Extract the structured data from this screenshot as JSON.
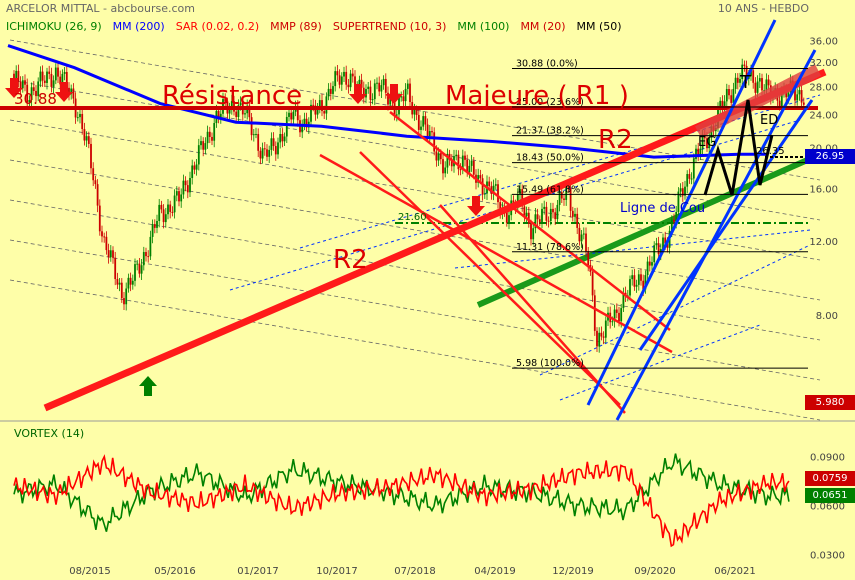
{
  "header": {
    "title": "ARCELOR MITTAL - abcbourse.com",
    "period": "10 ANS - HEBDO",
    "indicators": [
      {
        "label": "ICHIMOKU (26, 9)",
        "color": "#008000"
      },
      {
        "label": "MM (200)",
        "color": "#0000ff"
      },
      {
        "label": "SAR (0.02, 0.2)",
        "color": "#ff0000"
      },
      {
        "label": "MMP (89)",
        "color": "#cc0000"
      },
      {
        "label": "SUPERTREND (10, 3)",
        "color": "#cc0000"
      },
      {
        "label": "MM (100)",
        "color": "#008000"
      },
      {
        "label": "MM (20)",
        "color": "#cc0000"
      },
      {
        "label": "MM (50)",
        "color": "#000000"
      }
    ]
  },
  "annotations": {
    "level_r1": "30.88",
    "resistance": "Résistance",
    "majeure": "Majeure ( R1 )",
    "r2_right": "R2",
    "r2_left": "R2",
    "neckline": "Ligne de Cou",
    "eg": "EG",
    "t": "T",
    "ed": "ED",
    "val_21": "21.60",
    "val_25": "26.35"
  },
  "fibonacci": [
    {
      "label": "30.88  (0.0%)",
      "value": 30.88
    },
    {
      "label": "25.00  (23.6%)",
      "value": 25.0
    },
    {
      "label": "21.37  (38.2%)",
      "value": 21.37
    },
    {
      "label": "18.43  (50.0%)",
      "value": 18.43
    },
    {
      "label": "15.49  (61.8%)",
      "value": 15.49
    },
    {
      "label": "11.31  (78.6%)",
      "value": 11.31
    },
    {
      "label": "5.98  (100.0%)",
      "value": 5.98
    }
  ],
  "price_tags": {
    "last_price": "26.95",
    "low": "5.980"
  },
  "vortex": {
    "title": "VORTEX (14)",
    "tag_red": "0.0759",
    "tag_green": "0.0651"
  },
  "colors": {
    "background": "#fefea8",
    "candle_up": "#008000",
    "candle_down": "#cc0000",
    "ma200": "#0000ff",
    "resistance_line": "#cc0000",
    "trend_red": "#ff1a1a",
    "trend_green": "#1a9a1a",
    "channel_blue": "#0033ff",
    "vortex_plus": "#008000",
    "vortex_minus": "#ff0000"
  },
  "chart_data": [
    {
      "type": "candlestick",
      "title": "ARCELOR MITTAL",
      "x_ticks": [
        "08/2015",
        "05/2016",
        "01/2017",
        "10/2017",
        "07/2018",
        "04/2019",
        "12/2019",
        "09/2020",
        "06/2021"
      ],
      "y_ticks": [
        36,
        32,
        28,
        24,
        20,
        16,
        12,
        8
      ],
      "ylim": [
        4.5,
        37.5
      ],
      "scale": "log",
      "grid": false,
      "series": [
        {
          "name": "Prix",
          "x": [
            "2015-01",
            "2015-03",
            "2015-05",
            "2015-06",
            "2015-08",
            "2015-10",
            "2015-11",
            "2016-01",
            "2016-02",
            "2016-04",
            "2016-05",
            "2016-07",
            "2016-08",
            "2016-10",
            "2016-11",
            "2017-01",
            "2017-02",
            "2017-04",
            "2017-05",
            "2017-07",
            "2017-08",
            "2017-10",
            "2017-11",
            "2018-01",
            "2018-02",
            "2018-04",
            "2018-06",
            "2018-07",
            "2018-08",
            "2018-10",
            "2018-11",
            "2019-01",
            "2019-02",
            "2019-04",
            "2019-05",
            "2019-07",
            "2019-08",
            "2019-10",
            "2019-12",
            "2020-01",
            "2020-02",
            "2020-03",
            "2020-05",
            "2020-06",
            "2020-08",
            "2020-09",
            "2020-11",
            "2020-12",
            "2021-02",
            "2021-03",
            "2021-05",
            "2021-06",
            "2021-08",
            "2021-09"
          ],
          "values": [
            30.0,
            27.0,
            29.0,
            30.5,
            26.0,
            17.0,
            12.0,
            9.0,
            9.5,
            12.0,
            14.0,
            15.0,
            17.0,
            21.0,
            24.0,
            25.5,
            24.0,
            19.0,
            20.0,
            24.0,
            23.0,
            25.0,
            28.0,
            30.0,
            27.0,
            28.0,
            25.0,
            27.0,
            24.0,
            20.0,
            18.0,
            19.0,
            17.0,
            16.0,
            14.0,
            15.0,
            13.0,
            14.0,
            15.5,
            13.0,
            11.0,
            7.0,
            8.0,
            9.0,
            10.0,
            11.0,
            13.0,
            16.0,
            20.0,
            22.0,
            27.0,
            30.0,
            29.0,
            26.95
          ]
        },
        {
          "name": "MM (200)",
          "x": [
            "2015-01",
            "2015-08",
            "2016-05",
            "2017-01",
            "2017-10",
            "2018-07",
            "2019-04",
            "2019-12",
            "2020-09",
            "2021-06",
            "2021-09"
          ],
          "values": [
            35.0,
            31.0,
            25.5,
            23.0,
            22.5,
            21.3,
            20.7,
            20.0,
            19.0,
            19.3,
            19.3
          ]
        }
      ]
    },
    {
      "type": "line",
      "title": "VORTEX (14)",
      "y_ticks": [
        0.09,
        0.075,
        0.06,
        0.03
      ],
      "series": [
        {
          "name": "VI+",
          "x": [
            "2015-01",
            "2015-06",
            "2015-11",
            "2016-04",
            "2016-09",
            "2017-02",
            "2017-07",
            "2017-12",
            "2018-05",
            "2018-10",
            "2019-03",
            "2019-08",
            "2020-01",
            "2020-06",
            "2020-11",
            "2021-04",
            "2021-09"
          ],
          "values": [
            0.066,
            0.073,
            0.048,
            0.069,
            0.08,
            0.065,
            0.082,
            0.074,
            0.068,
            0.06,
            0.072,
            0.068,
            0.06,
            0.057,
            0.087,
            0.073,
            0.066
          ]
        },
        {
          "name": "VI-",
          "x": [
            "2015-01",
            "2015-06",
            "2015-11",
            "2016-04",
            "2016-09",
            "2017-02",
            "2017-07",
            "2017-12",
            "2018-05",
            "2018-10",
            "2019-03",
            "2019-08",
            "2020-01",
            "2020-06",
            "2020-11",
            "2021-04",
            "2021-09"
          ],
          "values": [
            0.073,
            0.066,
            0.086,
            0.068,
            0.061,
            0.072,
            0.058,
            0.068,
            0.071,
            0.079,
            0.066,
            0.07,
            0.08,
            0.082,
            0.038,
            0.063,
            0.074
          ]
        }
      ]
    }
  ]
}
